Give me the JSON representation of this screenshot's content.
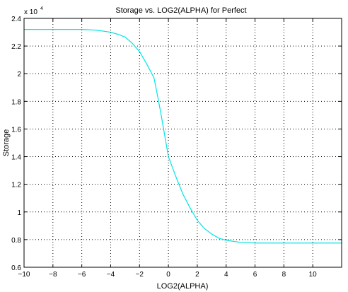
{
  "chart_data": {
    "type": "line",
    "title": "Storage vs. LOG2(ALPHA) for Perfect",
    "xlabel": "LOG2(ALPHA)",
    "ylabel": "Storage",
    "xlim": [
      -10,
      12
    ],
    "ylim": [
      0.6,
      2.4
    ],
    "y_exponent_label": "x 10",
    "y_exponent_power": "4",
    "grid": true,
    "x_ticks": [
      -10,
      -8,
      -6,
      -4,
      -2,
      0,
      2,
      4,
      6,
      8,
      10
    ],
    "x_tick_labels": [
      "−10",
      "−8",
      "−6",
      "−4",
      "−2",
      "0",
      "2",
      "4",
      "6",
      "8",
      "10"
    ],
    "y_ticks": [
      0.6,
      0.8,
      1,
      1.2,
      1.4,
      1.6,
      1.8,
      2,
      2.2,
      2.4
    ],
    "y_tick_labels": [
      "0.6",
      "0.8",
      "1",
      "1.2",
      "1.4",
      "1.6",
      "1.8",
      "2",
      "2.2",
      "2.4"
    ],
    "series": [
      {
        "color": "#00e5e5",
        "x": [
          -10,
          -9,
          -8,
          -7,
          -6,
          -5,
          -4,
          -3.5,
          -3,
          -2.5,
          -2,
          -1.5,
          -1,
          -0.75,
          -0.5,
          -0.25,
          0,
          0.5,
          1,
          1.5,
          2,
          2.5,
          3,
          3.5,
          4,
          5,
          6,
          7,
          8,
          9,
          10,
          11,
          12
        ],
        "y": [
          2.32,
          2.32,
          2.32,
          2.32,
          2.32,
          2.315,
          2.3,
          2.285,
          2.265,
          2.22,
          2.16,
          2.07,
          1.97,
          1.84,
          1.7,
          1.55,
          1.4,
          1.26,
          1.13,
          1.03,
          0.94,
          0.88,
          0.84,
          0.81,
          0.795,
          0.78,
          0.775,
          0.775,
          0.775,
          0.775,
          0.775,
          0.775,
          0.775
        ]
      }
    ]
  }
}
